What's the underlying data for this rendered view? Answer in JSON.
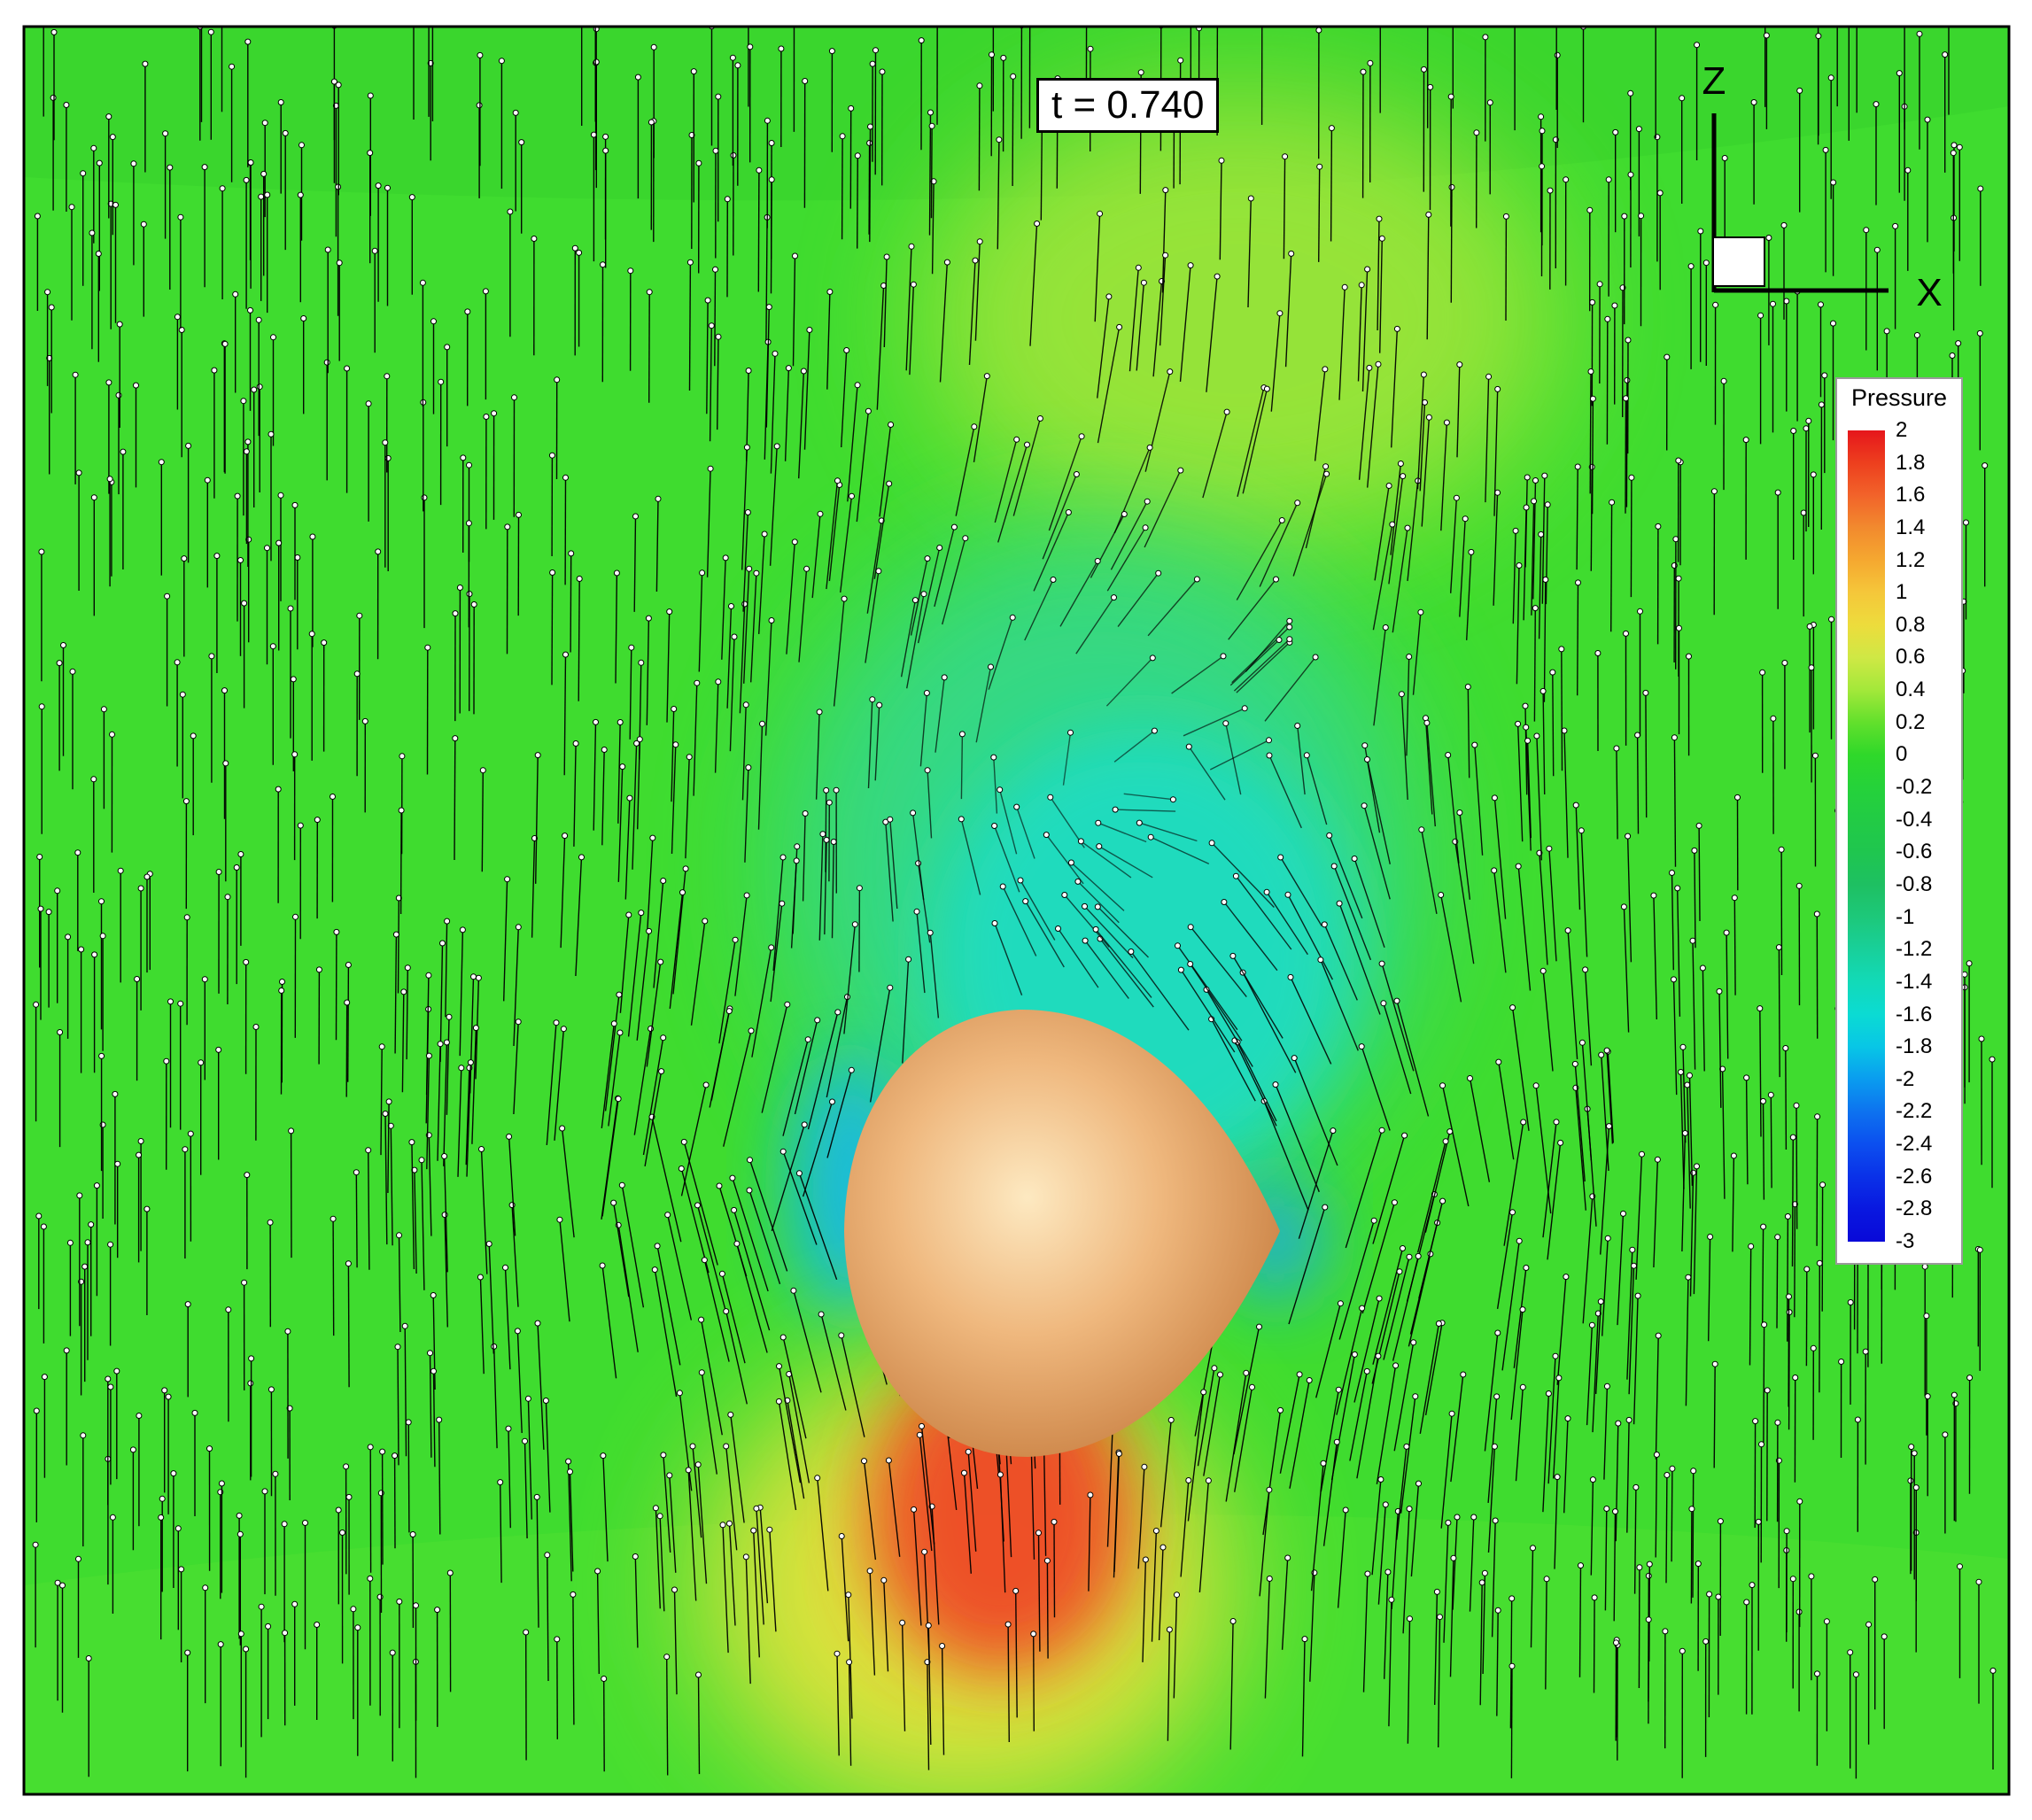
{
  "time_label": "t = 0.740",
  "axes": {
    "vertical": "Z",
    "horizontal": "X"
  },
  "legend": {
    "title": "Pressure",
    "ticks": [
      "2",
      "1.8",
      "1.6",
      "1.4",
      "1.2",
      "1",
      "0.8",
      "0.6",
      "0.4",
      "0.2",
      "0",
      "-0.2",
      "-0.4",
      "-0.6",
      "-0.8",
      "-1",
      "-1.2",
      "-1.4",
      "-1.6",
      "-1.8",
      "-2",
      "-2.2",
      "-2.4",
      "-2.6",
      "-2.8",
      "-3"
    ],
    "colors": [
      "#e6161c",
      "#ed3f1e",
      "#f2632a",
      "#f28a2e",
      "#f5a830",
      "#f5c73a",
      "#eddc3c",
      "#cfe845",
      "#a3e83a",
      "#62e02c",
      "#2fd82a",
      "#25d23a",
      "#22cb45",
      "#1fc64f",
      "#1ec062",
      "#1dc87a",
      "#18d09a",
      "#12dab8",
      "#0bdbd3",
      "#08c6e6",
      "#0a9cef",
      "#0d72ef",
      "#0c4fef",
      "#0a31e8",
      "#0918e0",
      "#0909d8"
    ]
  },
  "colors": {
    "background": "#33d92e",
    "body": "#e7a468",
    "outline": "#000000"
  }
}
